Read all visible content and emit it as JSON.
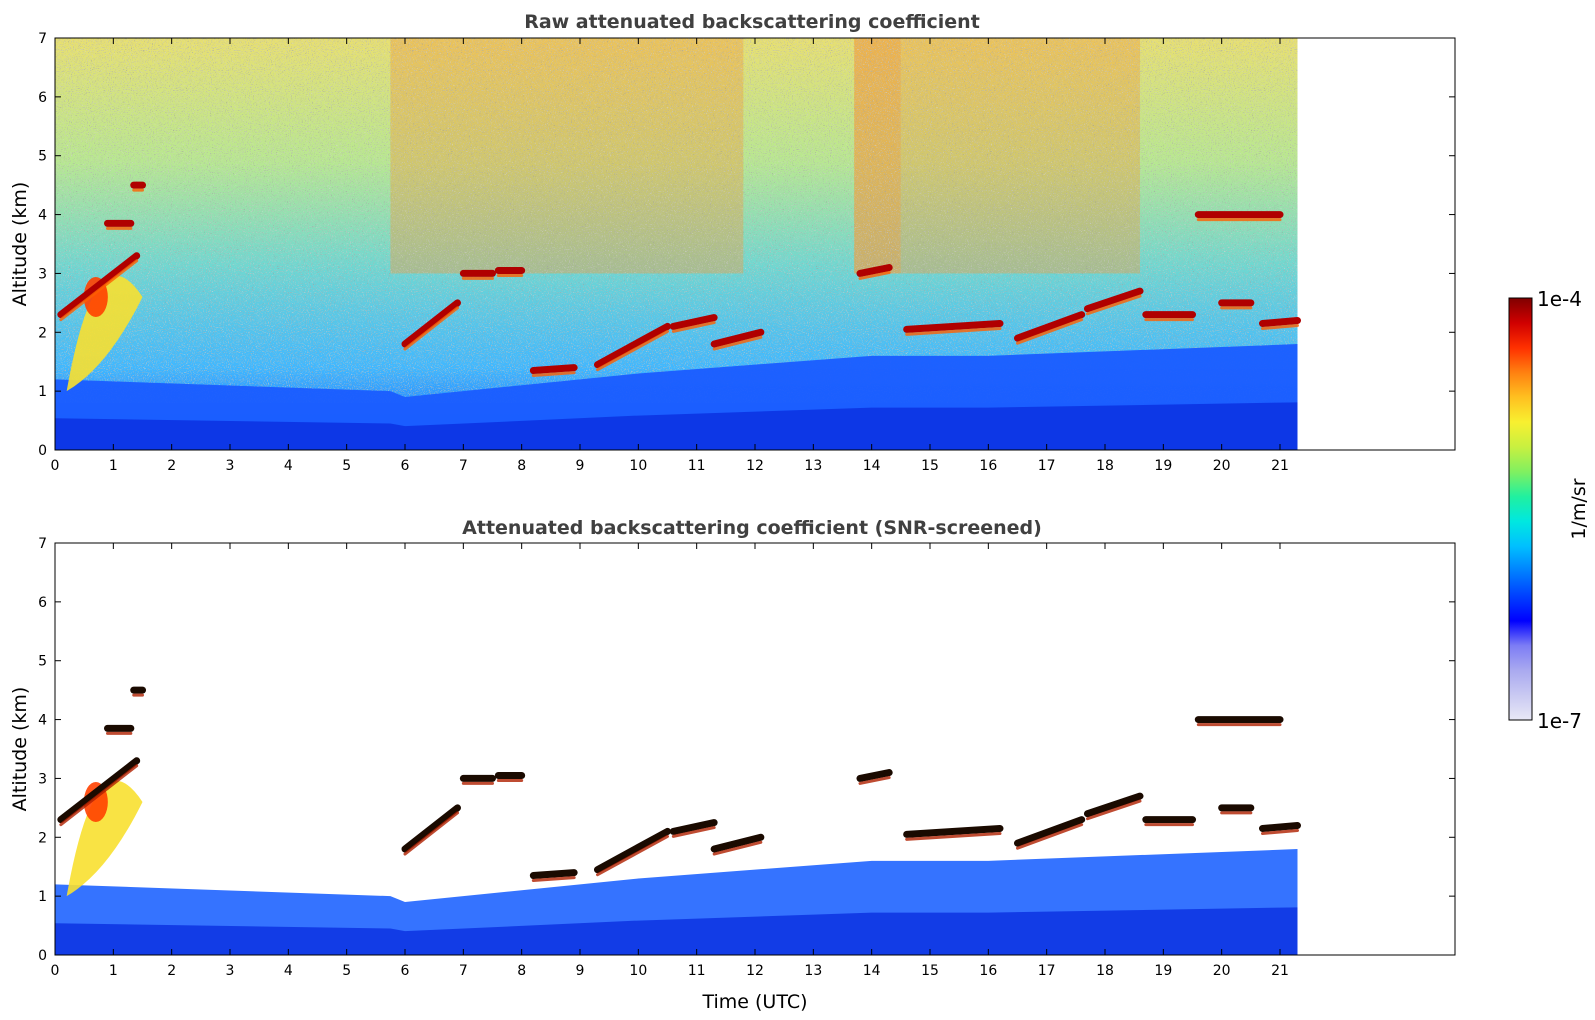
{
  "chart_data": [
    {
      "type": "heatmap",
      "title": "Raw attenuated backscattering coefficient",
      "xlabel": "",
      "ylabel": "Altitude (km)",
      "xlim": [
        0,
        24
      ],
      "ylim": [
        0,
        7
      ],
      "data_end_time": 21.3,
      "x_ticks": [
        "0",
        "1",
        "2",
        "3",
        "4",
        "5",
        "6",
        "7",
        "8",
        "9",
        "10",
        "11",
        "12",
        "13",
        "14",
        "15",
        "16",
        "17",
        "18",
        "19",
        "20",
        "21"
      ],
      "y_ticks": [
        "0",
        "1",
        "2",
        "3",
        "4",
        "5",
        "6",
        "7"
      ],
      "layers": [
        {
          "name": "noise",
          "description_values": "speckled noise increasing with altitude; higher after 5.75 h and 13.7-14.5 h"
        },
        {
          "name": "boundary_layer",
          "x": [
            0,
            5.75,
            6,
            10,
            14,
            16,
            21.3
          ],
          "top_km": [
            1.2,
            1.0,
            0.9,
            1.3,
            1.6,
            1.6,
            1.8
          ],
          "value": "1e-6"
        },
        {
          "name": "cloud",
          "segments": [
            {
              "x": [
                0.1,
                1.4
              ],
              "y": [
                2.3,
                3.3
              ]
            },
            {
              "x": [
                0.9,
                1.3
              ],
              "y": [
                3.85,
                3.85
              ]
            },
            {
              "x": [
                1.35,
                1.5
              ],
              "y": [
                4.5,
                4.5
              ]
            },
            {
              "x": [
                6.0,
                6.9
              ],
              "y": [
                1.8,
                2.5
              ]
            },
            {
              "x": [
                7.0,
                7.5
              ],
              "y": [
                3.0,
                3.0
              ]
            },
            {
              "x": [
                7.6,
                8.0
              ],
              "y": [
                3.05,
                3.05
              ]
            },
            {
              "x": [
                8.2,
                8.9
              ],
              "y": [
                1.35,
                1.4
              ]
            },
            {
              "x": [
                9.3,
                10.5
              ],
              "y": [
                1.45,
                2.1
              ]
            },
            {
              "x": [
                10.6,
                11.3
              ],
              "y": [
                2.1,
                2.25
              ]
            },
            {
              "x": [
                11.3,
                12.1
              ],
              "y": [
                1.8,
                2.0
              ]
            },
            {
              "x": [
                13.8,
                14.3
              ],
              "y": [
                3.0,
                3.1
              ]
            },
            {
              "x": [
                14.6,
                16.2
              ],
              "y": [
                2.05,
                2.15
              ]
            },
            {
              "x": [
                16.5,
                17.6
              ],
              "y": [
                1.9,
                2.3
              ]
            },
            {
              "x": [
                17.7,
                18.6
              ],
              "y": [
                2.4,
                2.7
              ]
            },
            {
              "x": [
                18.7,
                19.5
              ],
              "y": [
                2.3,
                2.3
              ]
            },
            {
              "x": [
                19.6,
                21.0
              ],
              "y": [
                4.0,
                4.0
              ]
            },
            {
              "x": [
                20.0,
                20.5
              ],
              "y": [
                2.5,
                2.5
              ]
            },
            {
              "x": [
                20.7,
                21.3
              ],
              "y": [
                2.15,
                2.2
              ]
            }
          ]
        }
      ]
    },
    {
      "type": "heatmap",
      "title": "Attenuated backscattering coefficient (SNR-screened)",
      "xlabel": "Time (UTC)",
      "ylabel": "Altitude (km)",
      "xlim": [
        0,
        24
      ],
      "ylim": [
        0,
        7
      ],
      "data_end_time": 21.3,
      "x_ticks": [
        "0",
        "1",
        "2",
        "3",
        "4",
        "5",
        "6",
        "7",
        "8",
        "9",
        "10",
        "11",
        "12",
        "13",
        "14",
        "15",
        "16",
        "17",
        "18",
        "19",
        "20",
        "21"
      ],
      "y_ticks": [
        "0",
        "1",
        "2",
        "3",
        "4",
        "5",
        "6",
        "7"
      ],
      "note_values": "same cloud and boundary-layer structure as the raw panel with noise removed (white)"
    }
  ],
  "colorbar": {
    "label": "1/m/sr",
    "min_label": "1e-7",
    "max_label": "1e-4",
    "colors": [
      "#e8e8f6",
      "#c9c9f2",
      "#a9a9f0",
      "#7d7df5",
      "#0000ff",
      "#0040ff",
      "#0080ff",
      "#00c0ff",
      "#00e8e0",
      "#20f0a0",
      "#80f060",
      "#c8f040",
      "#f8f030",
      "#ffc020",
      "#ff8010",
      "#ff3000",
      "#d00000",
      "#800000"
    ]
  }
}
